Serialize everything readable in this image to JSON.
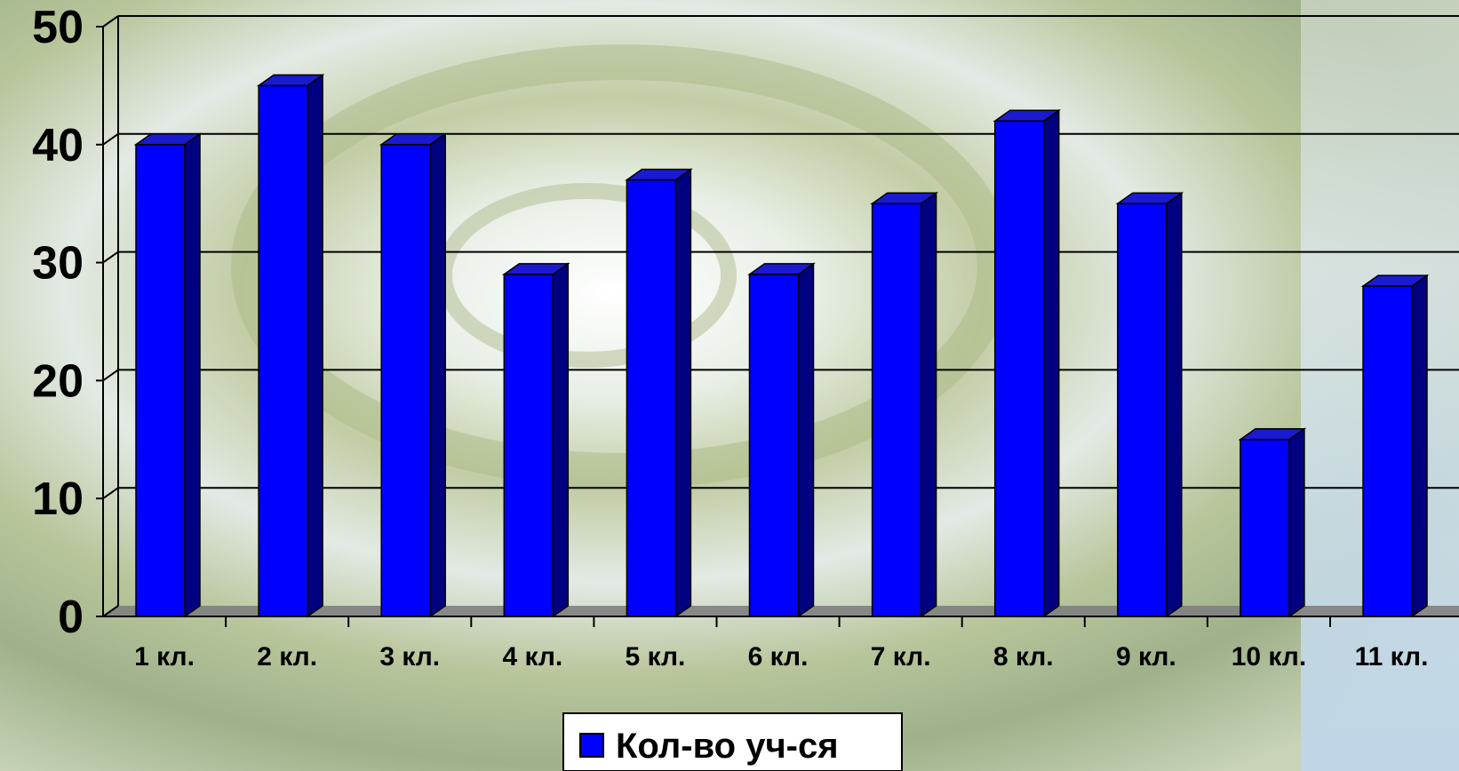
{
  "chart_data": {
    "type": "bar",
    "categories": [
      "1 кл.",
      "2 кл.",
      "3 кл.",
      "4 кл.",
      "5 кл.",
      "6 кл.",
      "7 кл.",
      "8 кл.",
      "9 кл.",
      "10 кл.",
      "11 кл."
    ],
    "series": [
      {
        "name": "Кол-во уч-ся",
        "values": [
          40,
          45,
          40,
          29,
          37,
          29,
          35,
          42,
          35,
          15,
          28
        ]
      }
    ],
    "y_ticks": [
      "0",
      "10",
      "20",
      "30",
      "40",
      "50"
    ],
    "ylim": [
      0,
      50
    ],
    "grid": true,
    "legend": "bottom-center",
    "bar_style": "3d",
    "colors": {
      "bar_front": "#0000ff",
      "bar_side": "#000080",
      "bar_top": "#1a1ad0",
      "gridline": "#000000",
      "floor": "#808080"
    }
  }
}
